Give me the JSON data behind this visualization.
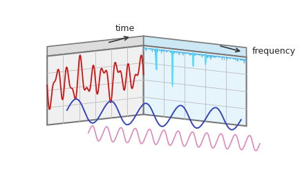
{
  "bg_color": "#ffffff",
  "time_label": "time",
  "freq_label": "frequency",
  "panel_edge_color": "#777777",
  "grid_color": "#bbbbbb",
  "red_wave_color": "#cc1111",
  "blue_wave_color": "#3344bb",
  "pink_wave_color": "#dd88bb",
  "spectrum_fill_color": "#33aadd",
  "spectrum_spike_color": "#00bbee",
  "arrow_color": "#333333",
  "left_panel_face": "#f0f0f0",
  "right_panel_face": "#e6f5fb",
  "left_panel_bottom_face": "#dddddd",
  "right_panel_bottom_face": "#cce8f5"
}
